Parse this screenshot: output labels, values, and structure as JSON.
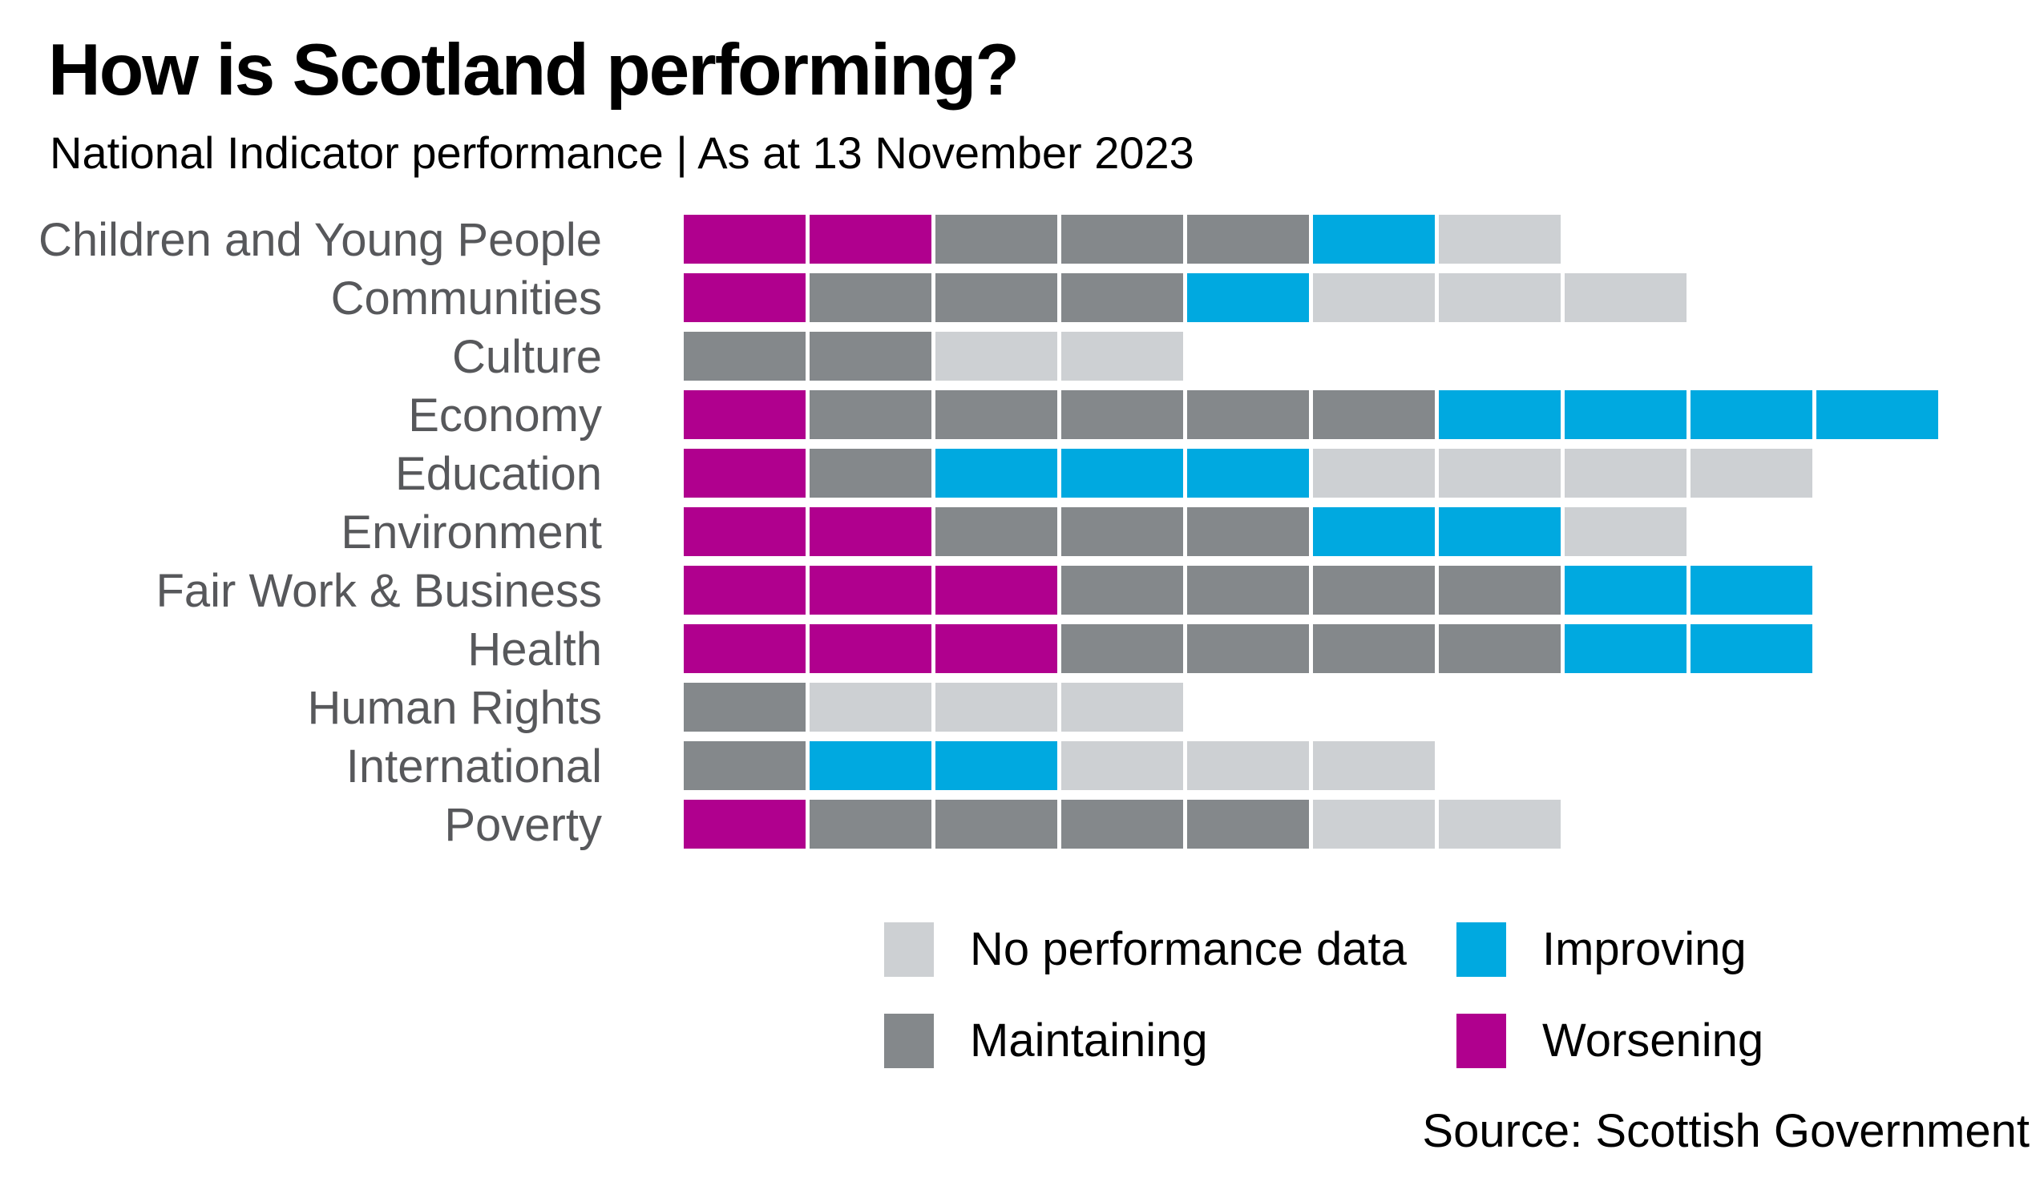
{
  "page": {
    "title": "How is Scotland performing?",
    "subtitle": "National Indicator performance | As at 13 November 2023",
    "source": "Source: Scottish Government"
  },
  "colors": {
    "background": "#ffffff",
    "heading": "#000000",
    "category_label": "#57585b",
    "worsening": "#b0008e",
    "maintaining": "#84888b",
    "improving": "#00a9e0",
    "no_data": "#cdd0d3"
  },
  "legend": {
    "items": [
      {
        "status": "no_data",
        "label": "No performance data"
      },
      {
        "status": "improving",
        "label": "Improving"
      },
      {
        "status": "maintaining",
        "label": "Maintaining"
      },
      {
        "status": "worsening",
        "label": "Worsening"
      }
    ]
  },
  "chart_data": {
    "type": "bar",
    "subtype": "stacked-unit-squares",
    "orientation": "horizontal",
    "unit": "1 square = 1 National Indicator",
    "grid": false,
    "legend_position": "bottom",
    "segment_order": [
      "worsening",
      "maintaining",
      "improving",
      "no_data"
    ],
    "x_max_units": 10,
    "categories": [
      "Children and Young People",
      "Communities",
      "Culture",
      "Economy",
      "Education",
      "Environment",
      "Fair Work & Business",
      "Health",
      "Human Rights",
      "International",
      "Poverty"
    ],
    "series": [
      {
        "name": "Worsening",
        "status": "worsening",
        "values": [
          2,
          1,
          0,
          1,
          1,
          2,
          3,
          3,
          0,
          0,
          1
        ]
      },
      {
        "name": "Maintaining",
        "status": "maintaining",
        "values": [
          3,
          3,
          2,
          5,
          1,
          3,
          4,
          4,
          1,
          1,
          4
        ]
      },
      {
        "name": "Improving",
        "status": "improving",
        "values": [
          1,
          1,
          0,
          4,
          3,
          2,
          2,
          2,
          0,
          2,
          0
        ]
      },
      {
        "name": "No performance data",
        "status": "no_data",
        "values": [
          1,
          3,
          2,
          0,
          4,
          1,
          0,
          0,
          3,
          3,
          2
        ]
      }
    ]
  }
}
